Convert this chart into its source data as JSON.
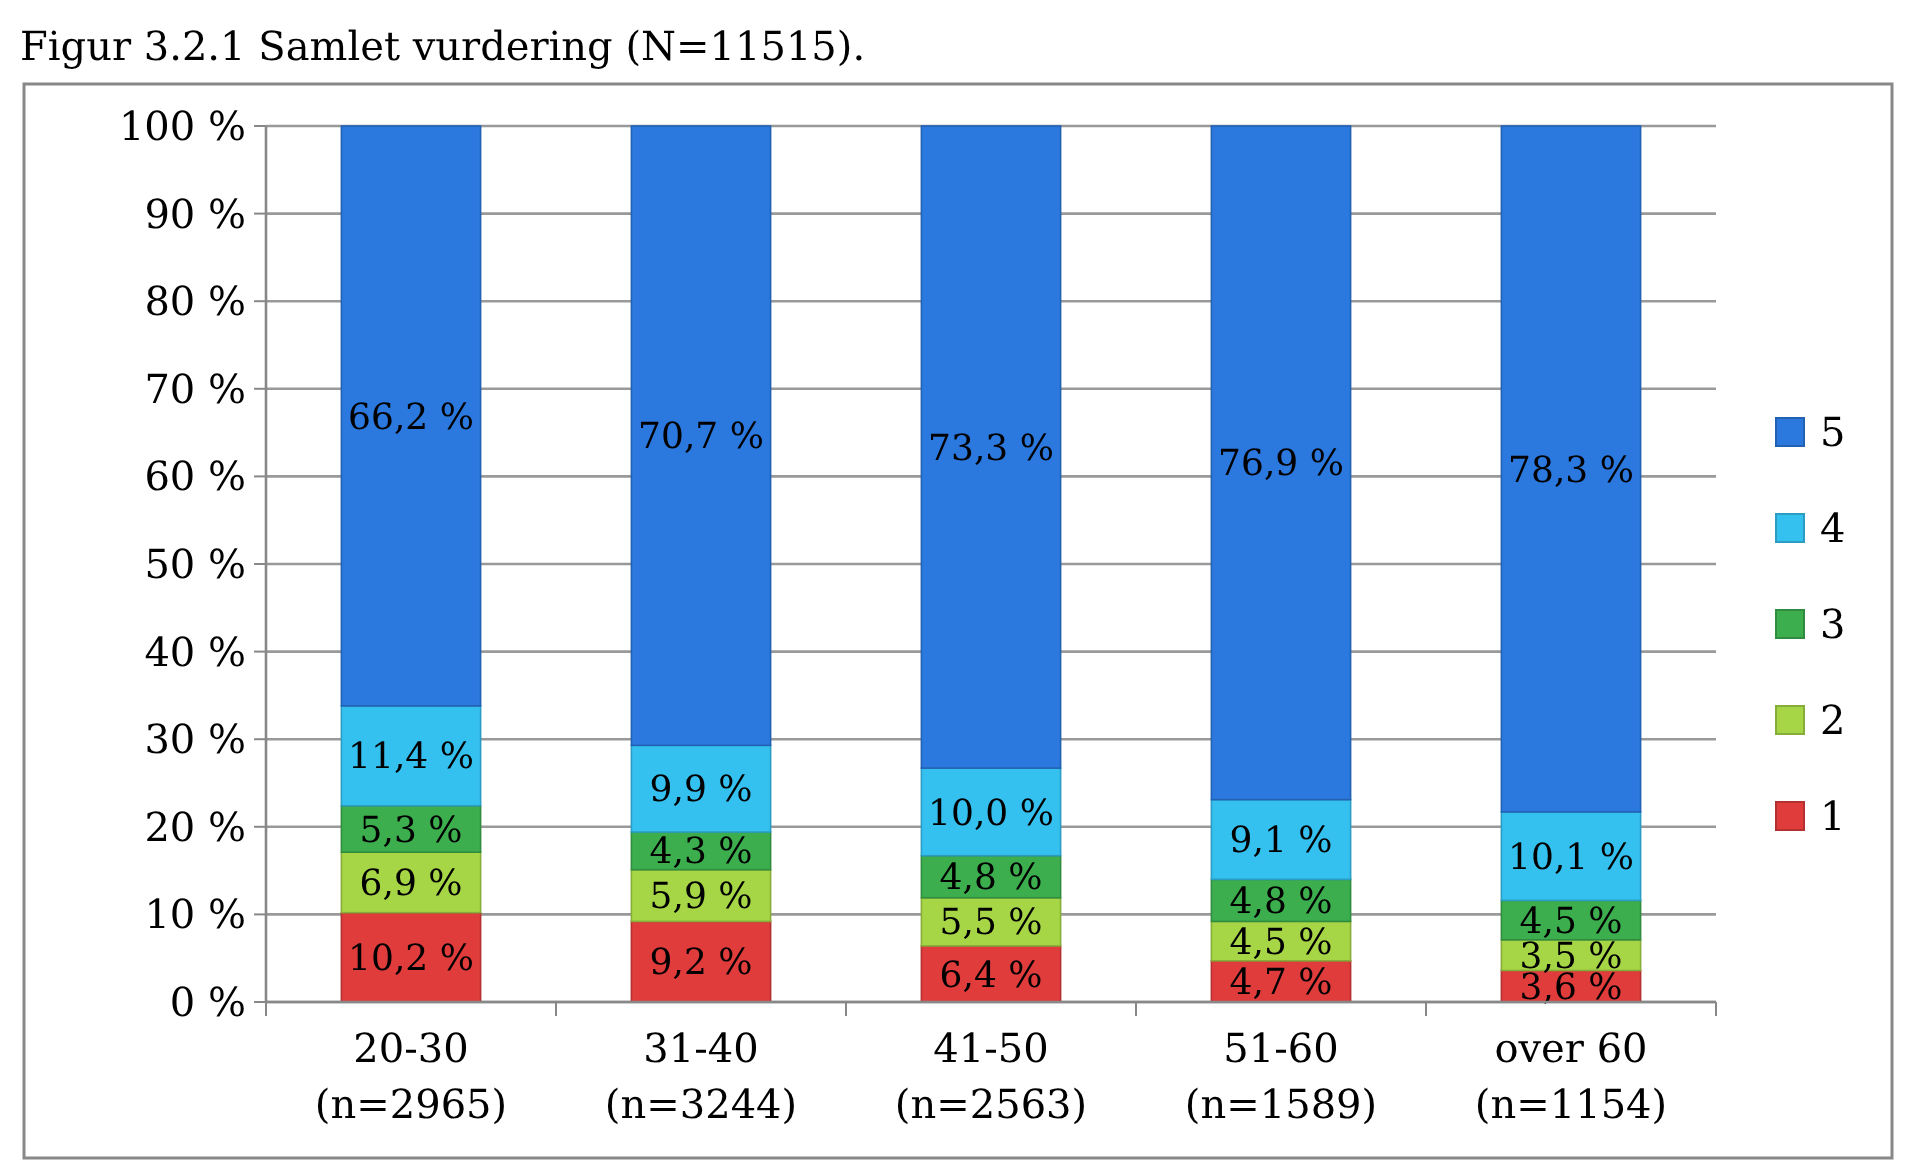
{
  "chart_data": {
    "type": "bar",
    "stacked": true,
    "title": "Figur 3.2.1 Samlet vurdering (N=11515).",
    "categories": [
      "20-30\n(n=2965)",
      "31-40\n(n=3244)",
      "41-50\n(n=2563)",
      "51-60\n(n=1589)",
      "over 60\n(n=1154)"
    ],
    "series": [
      {
        "name": "1",
        "color": "#e03c3c",
        "values": [
          10.2,
          9.2,
          6.4,
          4.7,
          3.6
        ],
        "value_labels": [
          "10,2 %",
          "9,2 %",
          "6,4 %",
          "4,7 %",
          "3,6 %"
        ]
      },
      {
        "name": "2",
        "color": "#a6d646",
        "values": [
          6.9,
          5.9,
          5.5,
          4.5,
          3.5
        ],
        "value_labels": [
          "6,9 %",
          "5,9 %",
          "5,5 %",
          "4,5 %",
          "3,5 %"
        ]
      },
      {
        "name": "3",
        "color": "#3cae4e",
        "values": [
          5.3,
          4.3,
          4.8,
          4.8,
          4.5
        ],
        "value_labels": [
          "5,3 %",
          "4,3 %",
          "4,8 %",
          "4,8 %",
          "4,5 %"
        ]
      },
      {
        "name": "4",
        "color": "#35c1f0",
        "values": [
          11.4,
          9.9,
          10.0,
          9.1,
          10.1
        ],
        "value_labels": [
          "11,4 %",
          "9,9 %",
          "10,0 %",
          "9,1 %",
          "10,1 %"
        ]
      },
      {
        "name": "5",
        "color": "#2b78de",
        "values": [
          66.2,
          70.7,
          73.3,
          76.9,
          78.3
        ],
        "value_labels": [
          "66,2 %",
          "70,7 %",
          "73,3 %",
          "76,9 %",
          "78,3 %"
        ]
      }
    ],
    "ylim": [
      0,
      100
    ],
    "yticks": [
      {
        "value": 0,
        "label": "0 %"
      },
      {
        "value": 10,
        "label": "10 %"
      },
      {
        "value": 20,
        "label": "20 %"
      },
      {
        "value": 30,
        "label": "30 %"
      },
      {
        "value": 40,
        "label": "40 %"
      },
      {
        "value": 50,
        "label": "50 %"
      },
      {
        "value": 60,
        "label": "60 %"
      },
      {
        "value": 70,
        "label": "70 %"
      },
      {
        "value": 80,
        "label": "80 %"
      },
      {
        "value": 90,
        "label": "90 %"
      },
      {
        "value": 100,
        "label": "100 %"
      }
    ],
    "grid": "y",
    "legend": "right"
  }
}
